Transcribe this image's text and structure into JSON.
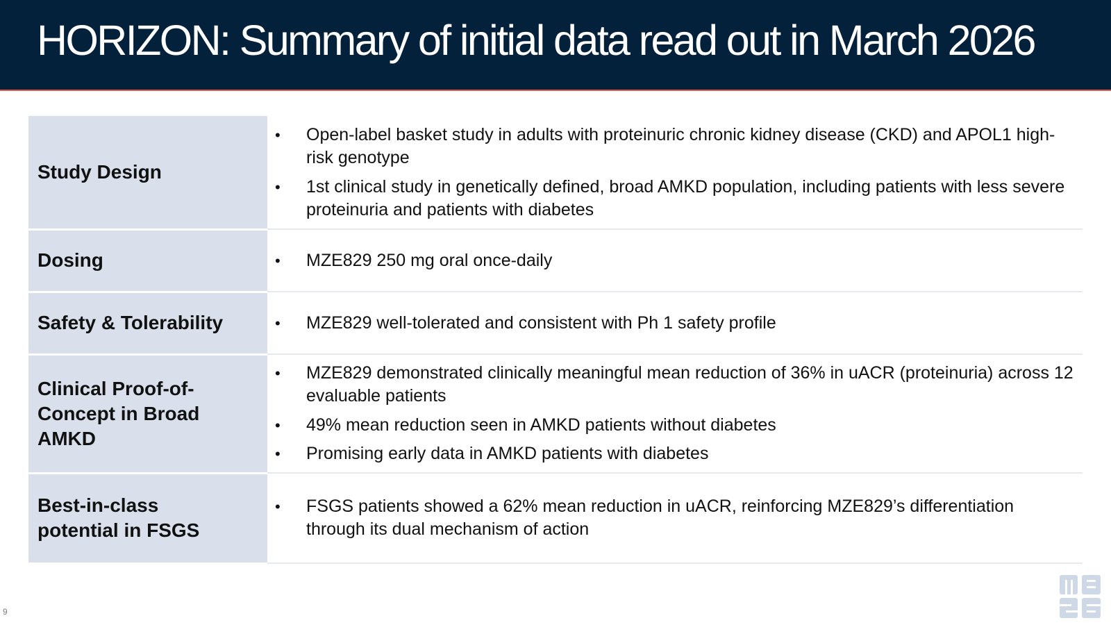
{
  "slide": {
    "title": "HORIZON: Summary of initial data read out in March 2026",
    "page_number": "9",
    "colors": {
      "header_background": "#03213a",
      "header_accent_line": "#e05a4c",
      "label_cell_background": "#d9e0eb",
      "logo": "#cfd8e6"
    }
  },
  "table": {
    "rows": [
      {
        "label": "Study Design",
        "bullets": [
          "Open-label basket study in adults with proteinuric chronic kidney disease (CKD) and APOL1 high-risk genotype",
          "1st clinical study in genetically defined, broad AMKD population, including patients with less severe proteinuria and patients with diabetes"
        ]
      },
      {
        "label": "Dosing",
        "bullets": [
          "MZE829 250 mg oral once-daily"
        ]
      },
      {
        "label": "Safety & Tolerability",
        "bullets": [
          "MZE829 well-tolerated and consistent with Ph 1 safety profile"
        ]
      },
      {
        "label": "Clinical Proof-of-Concept in Broad AMKD",
        "bullets": [
          "MZE829 demonstrated clinically meaningful mean reduction of 36% in uACR (proteinuria) across 12 evaluable patients",
          "49% mean reduction seen in AMKD patients without diabetes",
          "Promising early data in AMKD patients with diabetes"
        ]
      },
      {
        "label": "Best-in-class potential in FSGS",
        "bullets": [
          "FSGS patients showed a 62% mean reduction in uACR, reinforcing MZE829’s differentiation through its dual mechanism of action"
        ]
      }
    ]
  },
  "logo": {
    "icon": "maze-logo-icon"
  }
}
